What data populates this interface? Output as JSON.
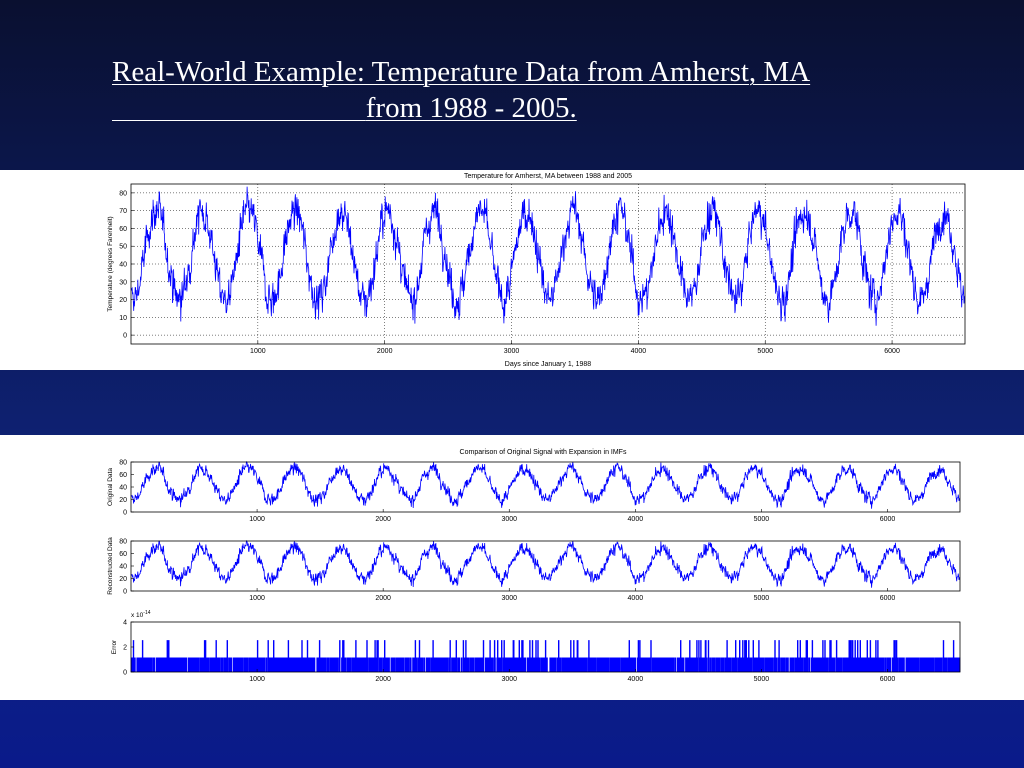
{
  "slide": {
    "title_line1": "Real-World Example: Temperature Data from Amherst, MA",
    "title_line2": "from 1988 - 2005."
  },
  "chart_data": [
    {
      "type": "line",
      "title": "Temperature for Amherst, MA between 1988 and 2005",
      "xlabel": "Days since January 1, 1988",
      "ylabel": "Temperature (degrees Farenheit)",
      "xlim": [
        0,
        6575
      ],
      "ylim": [
        -5,
        85
      ],
      "xticks": [
        1000,
        2000,
        3000,
        4000,
        5000,
        6000
      ],
      "yticks": [
        0,
        10,
        20,
        30,
        40,
        50,
        60,
        70,
        80
      ],
      "grid": true,
      "color": "#0000ff",
      "series": [
        {
          "model": "seasonal",
          "mean": 45,
          "amplitude": 25,
          "period_days": 365.25,
          "noise": 10
        }
      ]
    },
    {
      "type": "line",
      "title": "Comparison of Original Signal with Expansion in IMFs",
      "ylabel": "Original Data",
      "xlim": [
        0,
        6575
      ],
      "ylim": [
        0,
        80
      ],
      "xticks": [
        1000,
        2000,
        3000,
        4000,
        5000,
        6000
      ],
      "yticks": [
        0,
        20,
        40,
        60,
        80
      ],
      "color": "#0000ff"
    },
    {
      "type": "line",
      "ylabel": "Reconstructed Data",
      "xlim": [
        0,
        6575
      ],
      "ylim": [
        0,
        80
      ],
      "xticks": [
        1000,
        2000,
        3000,
        4000,
        5000,
        6000
      ],
      "yticks": [
        0,
        20,
        40,
        60,
        80
      ],
      "color": "#0000ff"
    },
    {
      "type": "bar",
      "ylabel": "Error",
      "exponent_label": "x 10",
      "exponent": "-14",
      "xlim": [
        0,
        6575
      ],
      "ylim": [
        0,
        4
      ],
      "xticks": [
        1000,
        2000,
        3000,
        4000,
        5000,
        6000
      ],
      "yticks": [
        0,
        2,
        4
      ],
      "levels": [
        0,
        1.78,
        3.55
      ],
      "color": "#0000ff"
    }
  ]
}
